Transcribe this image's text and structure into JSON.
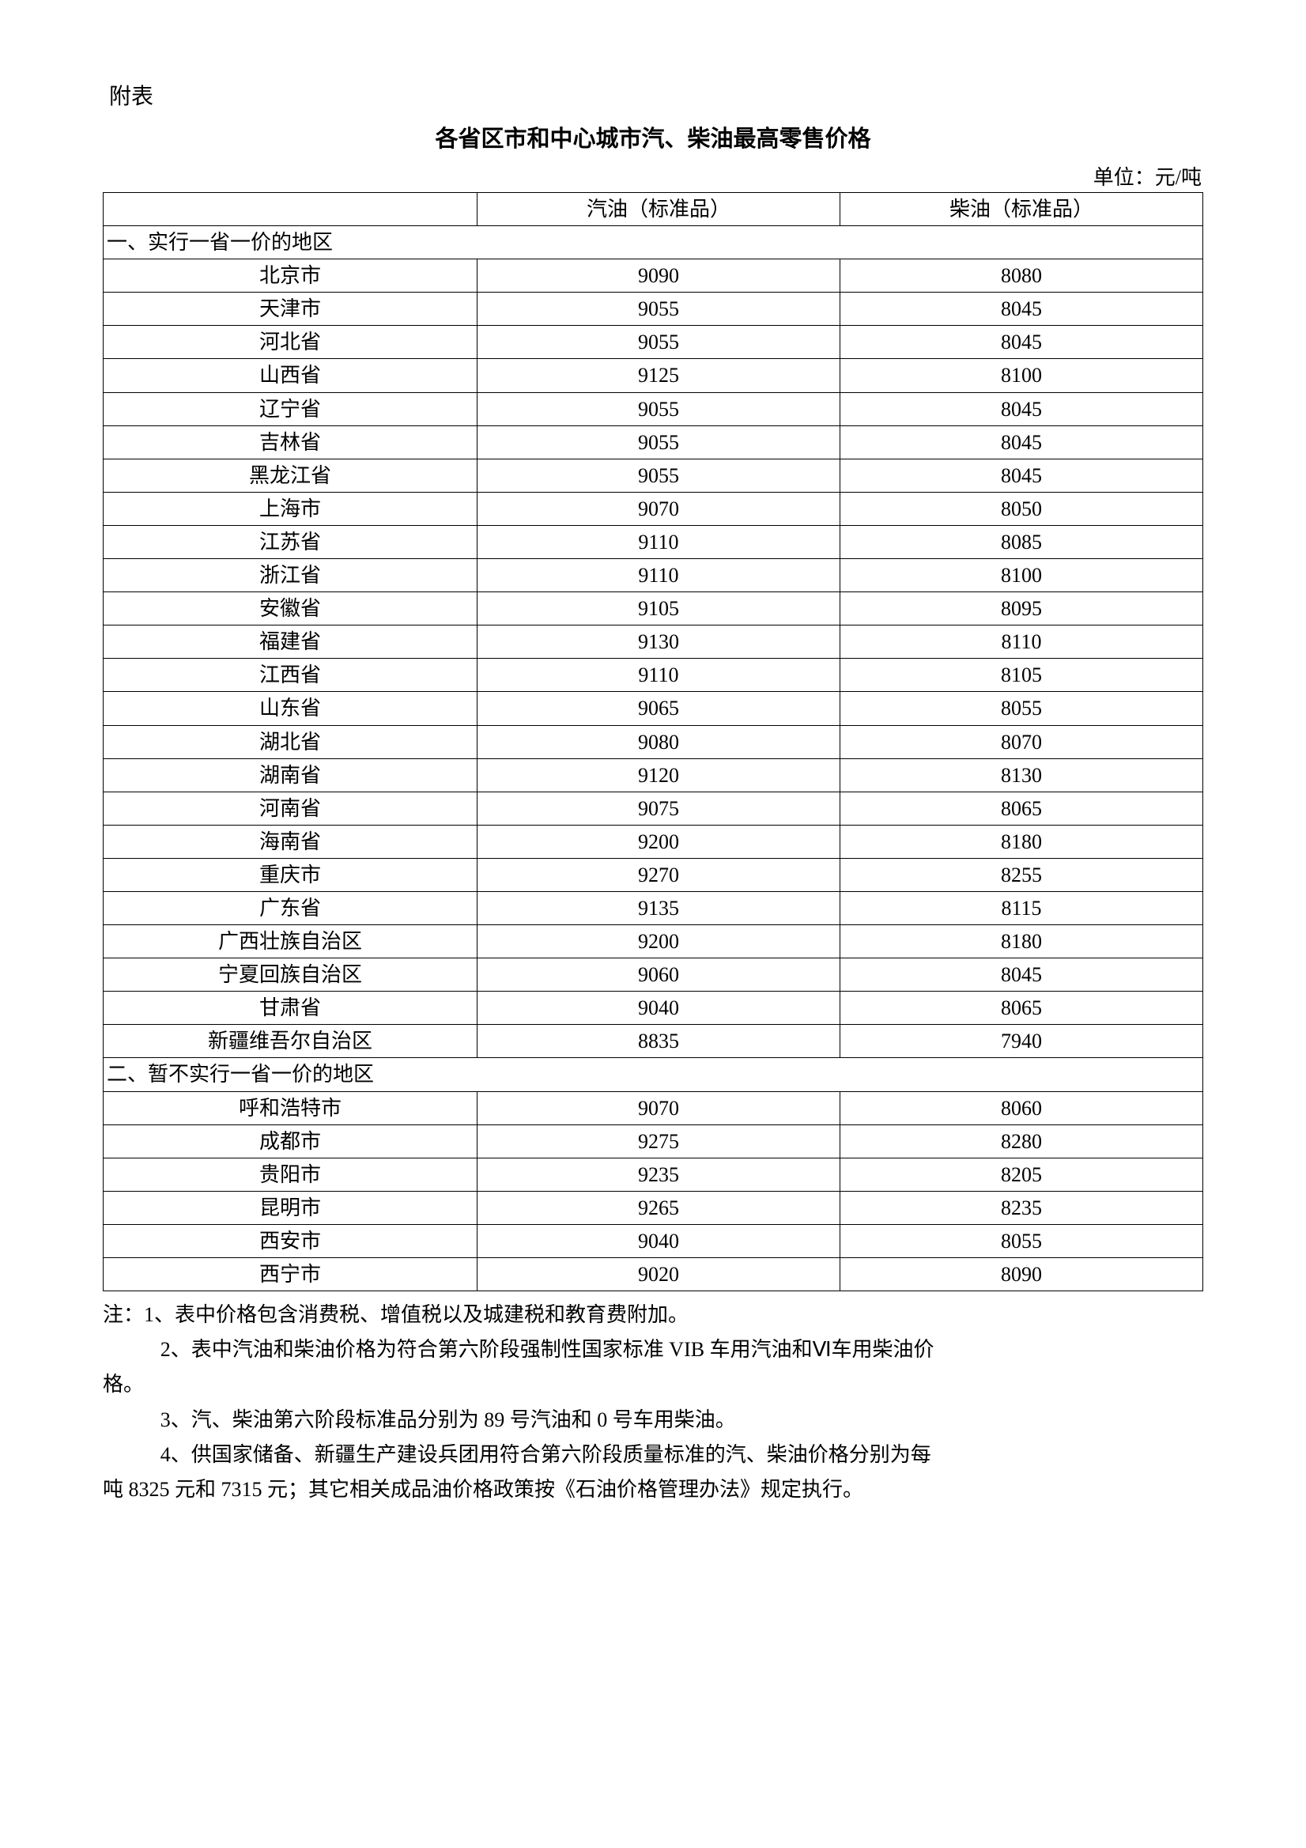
{
  "header_label": "附表",
  "title": "各省区市和中心城市汽、柴油最高零售价格",
  "unit_label": "单位：元/吨",
  "columns": {
    "region": "",
    "gasoline": "汽油（标准品）",
    "diesel": "柴油（标准品）"
  },
  "section1_label": "一、实行一省一价的地区",
  "section1_rows": [
    {
      "region": "北京市",
      "gas": "9090",
      "diesel": "8080"
    },
    {
      "region": "天津市",
      "gas": "9055",
      "diesel": "8045"
    },
    {
      "region": "河北省",
      "gas": "9055",
      "diesel": "8045"
    },
    {
      "region": "山西省",
      "gas": "9125",
      "diesel": "8100"
    },
    {
      "region": "辽宁省",
      "gas": "9055",
      "diesel": "8045"
    },
    {
      "region": "吉林省",
      "gas": "9055",
      "diesel": "8045"
    },
    {
      "region": "黑龙江省",
      "gas": "9055",
      "diesel": "8045"
    },
    {
      "region": "上海市",
      "gas": "9070",
      "diesel": "8050"
    },
    {
      "region": "江苏省",
      "gas": "9110",
      "diesel": "8085"
    },
    {
      "region": "浙江省",
      "gas": "9110",
      "diesel": "8100"
    },
    {
      "region": "安徽省",
      "gas": "9105",
      "diesel": "8095"
    },
    {
      "region": "福建省",
      "gas": "9130",
      "diesel": "8110"
    },
    {
      "region": "江西省",
      "gas": "9110",
      "diesel": "8105"
    },
    {
      "region": "山东省",
      "gas": "9065",
      "diesel": "8055"
    },
    {
      "region": "湖北省",
      "gas": "9080",
      "diesel": "8070"
    },
    {
      "region": "湖南省",
      "gas": "9120",
      "diesel": "8130"
    },
    {
      "region": "河南省",
      "gas": "9075",
      "diesel": "8065"
    },
    {
      "region": "海南省",
      "gas": "9200",
      "diesel": "8180"
    },
    {
      "region": "重庆市",
      "gas": "9270",
      "diesel": "8255"
    },
    {
      "region": "广东省",
      "gas": "9135",
      "diesel": "8115"
    },
    {
      "region": "广西壮族自治区",
      "gas": "9200",
      "diesel": "8180"
    },
    {
      "region": "宁夏回族自治区",
      "gas": "9060",
      "diesel": "8045"
    },
    {
      "region": "甘肃省",
      "gas": "9040",
      "diesel": "8065"
    },
    {
      "region": "新疆维吾尔自治区",
      "gas": "8835",
      "diesel": "7940"
    }
  ],
  "section2_label": "二、暂不实行一省一价的地区",
  "section2_rows": [
    {
      "region": "呼和浩特市",
      "gas": "9070",
      "diesel": "8060"
    },
    {
      "region": "成都市",
      "gas": "9275",
      "diesel": "8280"
    },
    {
      "region": "贵阳市",
      "gas": "9235",
      "diesel": "8205"
    },
    {
      "region": "昆明市",
      "gas": "9265",
      "diesel": "8235"
    },
    {
      "region": "西安市",
      "gas": "9040",
      "diesel": "8055"
    },
    {
      "region": "西宁市",
      "gas": "9020",
      "diesel": "8090"
    }
  ],
  "notes": {
    "line1": "注：1、表中价格包含消费税、增值税以及城建税和教育费附加。",
    "line2a": "2、表中汽油和柴油价格为符合第六阶段强制性国家标准 VIB 车用汽油和Ⅵ车用柴油价",
    "line2b": "格。",
    "line3": "3、汽、柴油第六阶段标准品分别为 89 号汽油和 0 号车用柴油。",
    "line4a": "4、供国家储备、新疆生产建设兵团用符合第六阶段质量标准的汽、柴油价格分别为每",
    "line4b": "吨 8325 元和 7315 元；其它相关成品油价格政策按《石油价格管理办法》规定执行。"
  },
  "styles": {
    "font_size_body": 26,
    "font_size_title": 29,
    "border_color": "#000000",
    "background_color": "#ffffff",
    "text_color": "#000000"
  }
}
